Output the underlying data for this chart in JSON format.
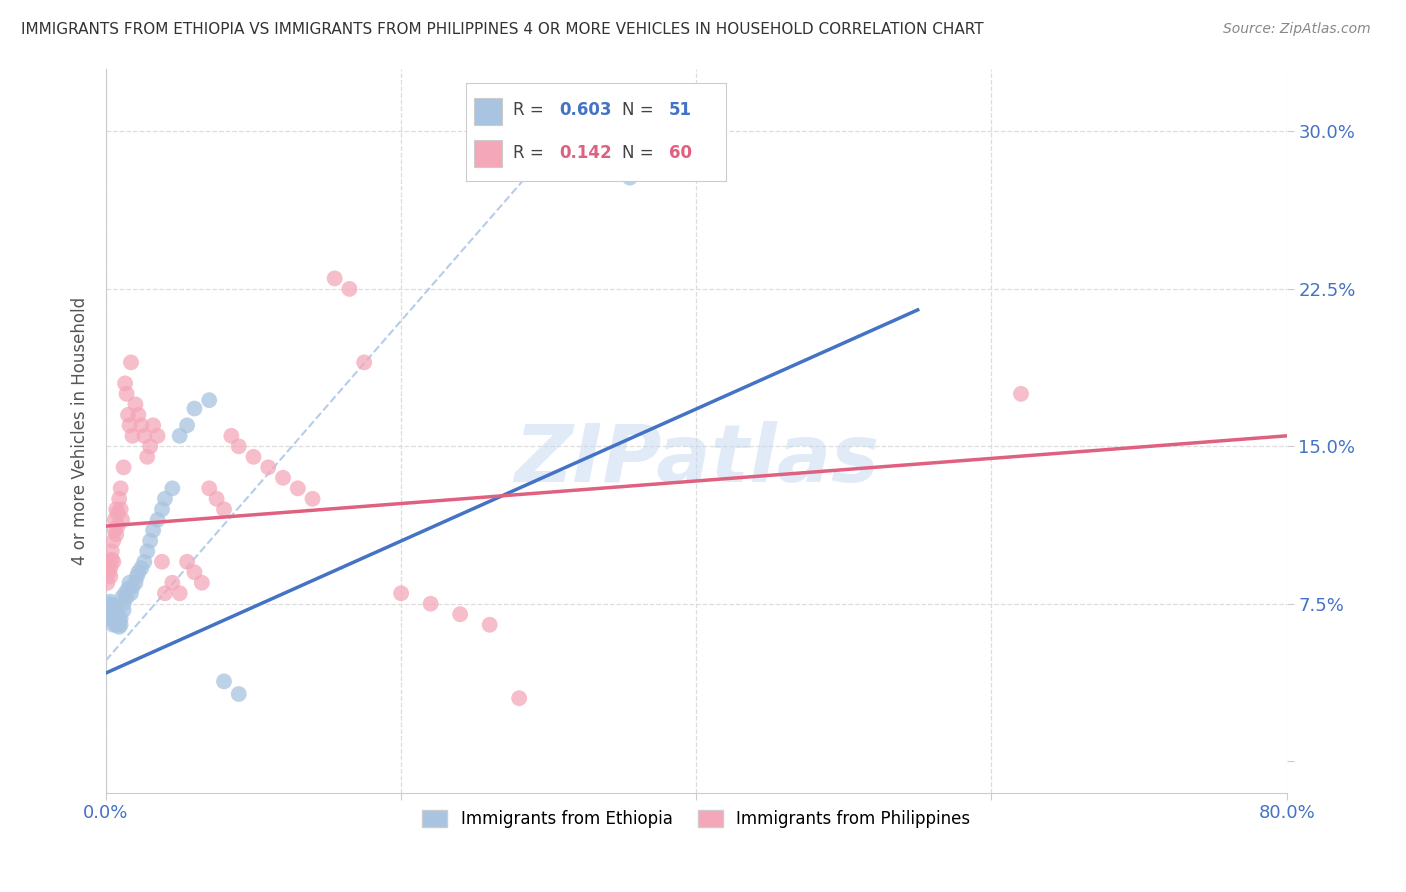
{
  "title": "IMMIGRANTS FROM ETHIOPIA VS IMMIGRANTS FROM PHILIPPINES 4 OR MORE VEHICLES IN HOUSEHOLD CORRELATION CHART",
  "source": "Source: ZipAtlas.com",
  "ylabel": "4 or more Vehicles in Household",
  "xlim": [
    0.0,
    0.8
  ],
  "ylim": [
    -0.015,
    0.33
  ],
  "ethiopia_R": 0.603,
  "ethiopia_N": 51,
  "philippines_R": 0.142,
  "philippines_N": 60,
  "ethiopia_color": "#a8c4e0",
  "philippines_color": "#f4a7b9",
  "ethiopia_line_color": "#4472c4",
  "philippines_line_color": "#e06080",
  "diagonal_line_color": "#aac4e8",
  "background_color": "#ffffff",
  "grid_color": "#dddddd",
  "title_color": "#333333",
  "axis_label_color": "#4472c4",
  "eth_line_x": [
    0.0,
    0.55
  ],
  "eth_line_y": [
    0.042,
    0.215
  ],
  "phil_line_x": [
    0.0,
    0.8
  ],
  "phil_line_y": [
    0.112,
    0.155
  ],
  "diag_line_x": [
    0.0,
    0.33
  ],
  "diag_line_y": [
    0.048,
    0.315
  ],
  "watermark_text": "ZIPatlas",
  "eth_scatter_x": [
    0.001,
    0.002,
    0.002,
    0.003,
    0.003,
    0.003,
    0.004,
    0.004,
    0.004,
    0.005,
    0.005,
    0.005,
    0.006,
    0.006,
    0.006,
    0.007,
    0.007,
    0.008,
    0.008,
    0.009,
    0.009,
    0.01,
    0.01,
    0.011,
    0.012,
    0.012,
    0.013,
    0.014,
    0.015,
    0.016,
    0.017,
    0.018,
    0.02,
    0.021,
    0.022,
    0.024,
    0.026,
    0.028,
    0.03,
    0.032,
    0.035,
    0.038,
    0.04,
    0.045,
    0.05,
    0.055,
    0.06,
    0.07,
    0.08,
    0.09,
    0.355
  ],
  "eth_scatter_y": [
    0.068,
    0.072,
    0.075,
    0.07,
    0.073,
    0.076,
    0.068,
    0.071,
    0.074,
    0.065,
    0.069,
    0.072,
    0.067,
    0.07,
    0.073,
    0.065,
    0.068,
    0.066,
    0.069,
    0.064,
    0.067,
    0.065,
    0.068,
    0.078,
    0.072,
    0.075,
    0.08,
    0.078,
    0.082,
    0.085,
    0.08,
    0.083,
    0.085,
    0.088,
    0.09,
    0.092,
    0.095,
    0.1,
    0.105,
    0.11,
    0.115,
    0.12,
    0.125,
    0.13,
    0.155,
    0.16,
    0.168,
    0.172,
    0.038,
    0.032,
    0.278
  ],
  "phil_scatter_x": [
    0.001,
    0.002,
    0.002,
    0.003,
    0.003,
    0.004,
    0.004,
    0.005,
    0.005,
    0.006,
    0.006,
    0.007,
    0.007,
    0.008,
    0.008,
    0.009,
    0.01,
    0.01,
    0.011,
    0.012,
    0.013,
    0.014,
    0.015,
    0.016,
    0.017,
    0.018,
    0.02,
    0.022,
    0.024,
    0.026,
    0.028,
    0.03,
    0.032,
    0.035,
    0.038,
    0.04,
    0.045,
    0.05,
    0.055,
    0.06,
    0.065,
    0.07,
    0.075,
    0.08,
    0.085,
    0.09,
    0.1,
    0.11,
    0.12,
    0.13,
    0.14,
    0.155,
    0.165,
    0.175,
    0.2,
    0.22,
    0.24,
    0.26,
    0.28,
    0.62
  ],
  "phil_scatter_y": [
    0.085,
    0.09,
    0.095,
    0.088,
    0.092,
    0.096,
    0.1,
    0.095,
    0.105,
    0.11,
    0.115,
    0.108,
    0.12,
    0.112,
    0.118,
    0.125,
    0.12,
    0.13,
    0.115,
    0.14,
    0.18,
    0.175,
    0.165,
    0.16,
    0.19,
    0.155,
    0.17,
    0.165,
    0.16,
    0.155,
    0.145,
    0.15,
    0.16,
    0.155,
    0.095,
    0.08,
    0.085,
    0.08,
    0.095,
    0.09,
    0.085,
    0.13,
    0.125,
    0.12,
    0.155,
    0.15,
    0.145,
    0.14,
    0.135,
    0.13,
    0.125,
    0.23,
    0.225,
    0.19,
    0.08,
    0.075,
    0.07,
    0.065,
    0.03,
    0.175
  ]
}
